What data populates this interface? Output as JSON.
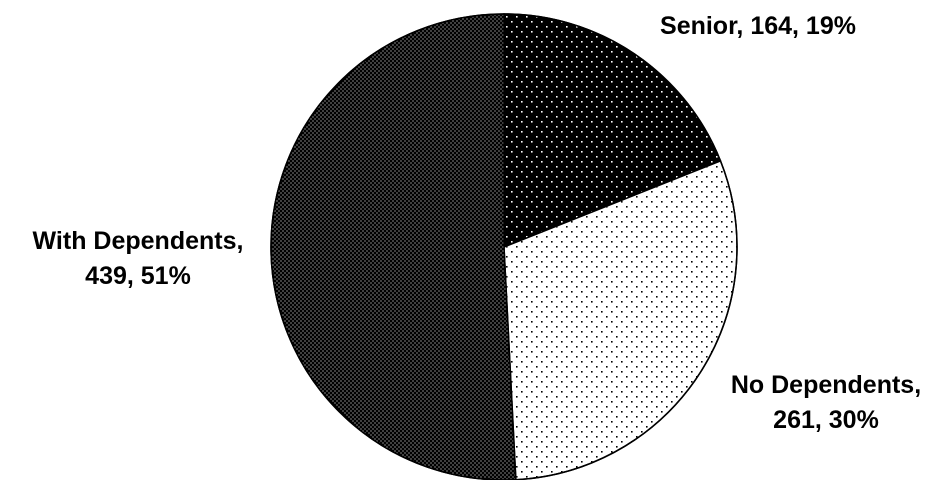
{
  "chart_data": {
    "type": "pie",
    "title": "",
    "slices": [
      {
        "category": "Senior",
        "value": 164,
        "percent": "19%",
        "label_line1": "Senior, 164, 19%",
        "label_line2": "",
        "pattern": "sparse-dots-on-black"
      },
      {
        "category": "No Dependents",
        "value": 261,
        "percent": "30%",
        "label_line1": "No Dependents,",
        "label_line2": "261, 30%",
        "pattern": "sparse-dots-on-white"
      },
      {
        "category": "With Dependents",
        "value": 439,
        "percent": "51%",
        "label_line1": "With Dependents,",
        "label_line2": "439, 51%",
        "pattern": "dense-dots-on-black"
      }
    ],
    "start_angle_deg": 0,
    "direction": "clockwise",
    "legend": "none",
    "data_labels": "category, value, percent"
  }
}
